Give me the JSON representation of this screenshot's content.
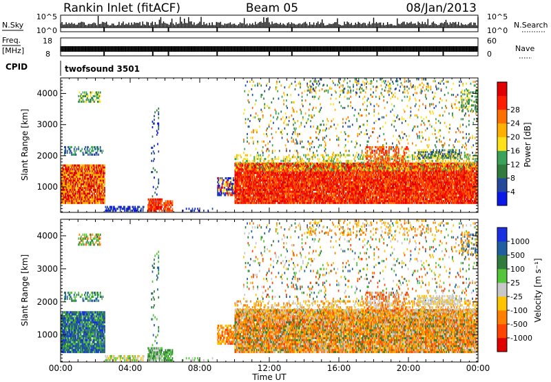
{
  "header": {
    "station": "Rankin Inlet (fitACF)",
    "beam": "Beam 05",
    "date": "08/Jan/2013"
  },
  "strip_labels": {
    "nsky": "N.Sky",
    "freq_top": "Freq.",
    "freq_unit": "[MHz]",
    "cpid": "CPID",
    "nsearch": "N.Search",
    "nave": "Nave",
    "cpid_value": "twofsound 3501"
  },
  "nsky_ticks": [
    "10^5",
    "10^0"
  ],
  "nsearch_ticks": [
    "10^5",
    "10^0"
  ],
  "freq_ticks": [
    "18",
    "8"
  ],
  "nave_ticks": [
    "60",
    "0"
  ],
  "colors": {
    "power": [
      "#0a18e8",
      "#24489c",
      "#2f7c3e",
      "#3aa35a",
      "#ffe21a",
      "#ffb000",
      "#ff6f00",
      "#ff1f00",
      "#e00000"
    ],
    "velocity": [
      "#1a2fe0",
      "#1f5fa0",
      "#2f7c3e",
      "#55c53a",
      "#c8c8c8",
      "#ffc400",
      "#ff8000",
      "#ff4500",
      "#e00000"
    ]
  },
  "chart_data": [
    {
      "type": "heatmap",
      "title": "Power",
      "xlabel": "",
      "ylabel": "Slant Range [km]",
      "xlim": [
        0,
        24
      ],
      "ylim": [
        180,
        4500
      ],
      "x_ticks": [
        "00:00",
        "04:00",
        "08:00",
        "12:00",
        "16:00",
        "20:00",
        "00:00"
      ],
      "y_ticks": [
        1000,
        2000,
        3000,
        4000
      ],
      "colorbar": {
        "label": "Power [dB]",
        "range": [
          0,
          32
        ],
        "ticks": [
          4,
          8,
          12,
          16,
          20,
          24,
          28
        ]
      }
    },
    {
      "type": "heatmap",
      "title": "Velocity",
      "xlabel": "Time UT",
      "ylabel": "Slant Range [km]",
      "xlim": [
        0,
        24
      ],
      "ylim": [
        180,
        4500
      ],
      "x_ticks": [
        "00:00",
        "04:00",
        "08:00",
        "12:00",
        "16:00",
        "20:00",
        "00:00"
      ],
      "y_ticks": [
        1000,
        2000,
        3000,
        4000
      ],
      "colorbar": {
        "label": "Velocity [m s⁻¹]",
        "ticks": [
          "1000",
          "500",
          "100",
          "25",
          "-25",
          "-100",
          "-500",
          "-1000"
        ]
      }
    }
  ]
}
